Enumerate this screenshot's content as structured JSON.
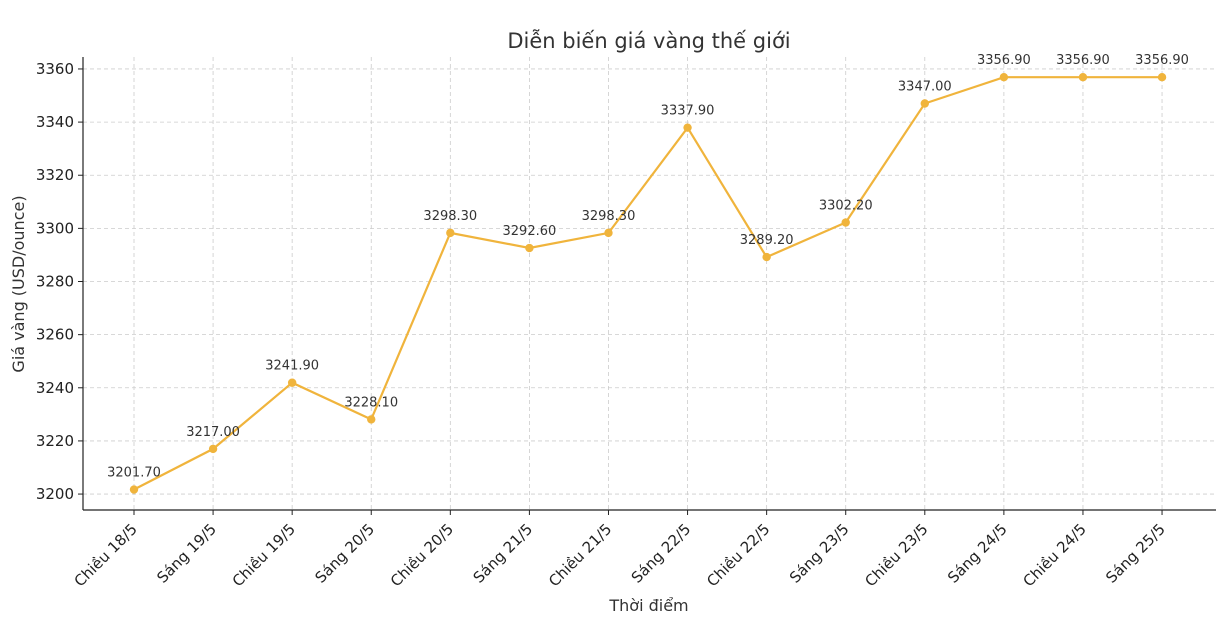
{
  "chart_data": {
    "type": "line",
    "title": "Diễn biến giá vàng thế giới",
    "xlabel": "Thời điểm",
    "ylabel": "Giá vàng (USD/ounce)",
    "categories": [
      "Chiều 18/5",
      "Sáng 19/5",
      "Chiều 19/5",
      "Sáng 20/5",
      "Chiều 20/5",
      "Sáng 21/5",
      "Chiều 21/5",
      "Sáng 22/5",
      "Chiều 22/5",
      "Sáng 23/5",
      "Chiều 23/5",
      "Sáng 24/5",
      "Chiều 24/5",
      "Sáng 25/5"
    ],
    "values": [
      3201.7,
      3217.0,
      3241.9,
      3228.1,
      3298.3,
      3292.6,
      3298.3,
      3337.9,
      3289.2,
      3302.2,
      3347.0,
      3356.9,
      3356.9,
      3356.9
    ],
    "data_labels": [
      "3201.70",
      "3217.00",
      "3241.90",
      "3228.10",
      "3298.30",
      "3292.60",
      "3298.30",
      "3337.90",
      "3289.20",
      "3302.20",
      "3347.00",
      "3356.90",
      "3356.90",
      "3356.90"
    ],
    "yticks": [
      3200,
      3220,
      3240,
      3260,
      3280,
      3300,
      3320,
      3340,
      3360
    ],
    "ylim": [
      3194.0,
      3364.5
    ],
    "grid": true,
    "colors": {
      "line": "#f0b43c",
      "marker": "#f0b43c"
    }
  }
}
